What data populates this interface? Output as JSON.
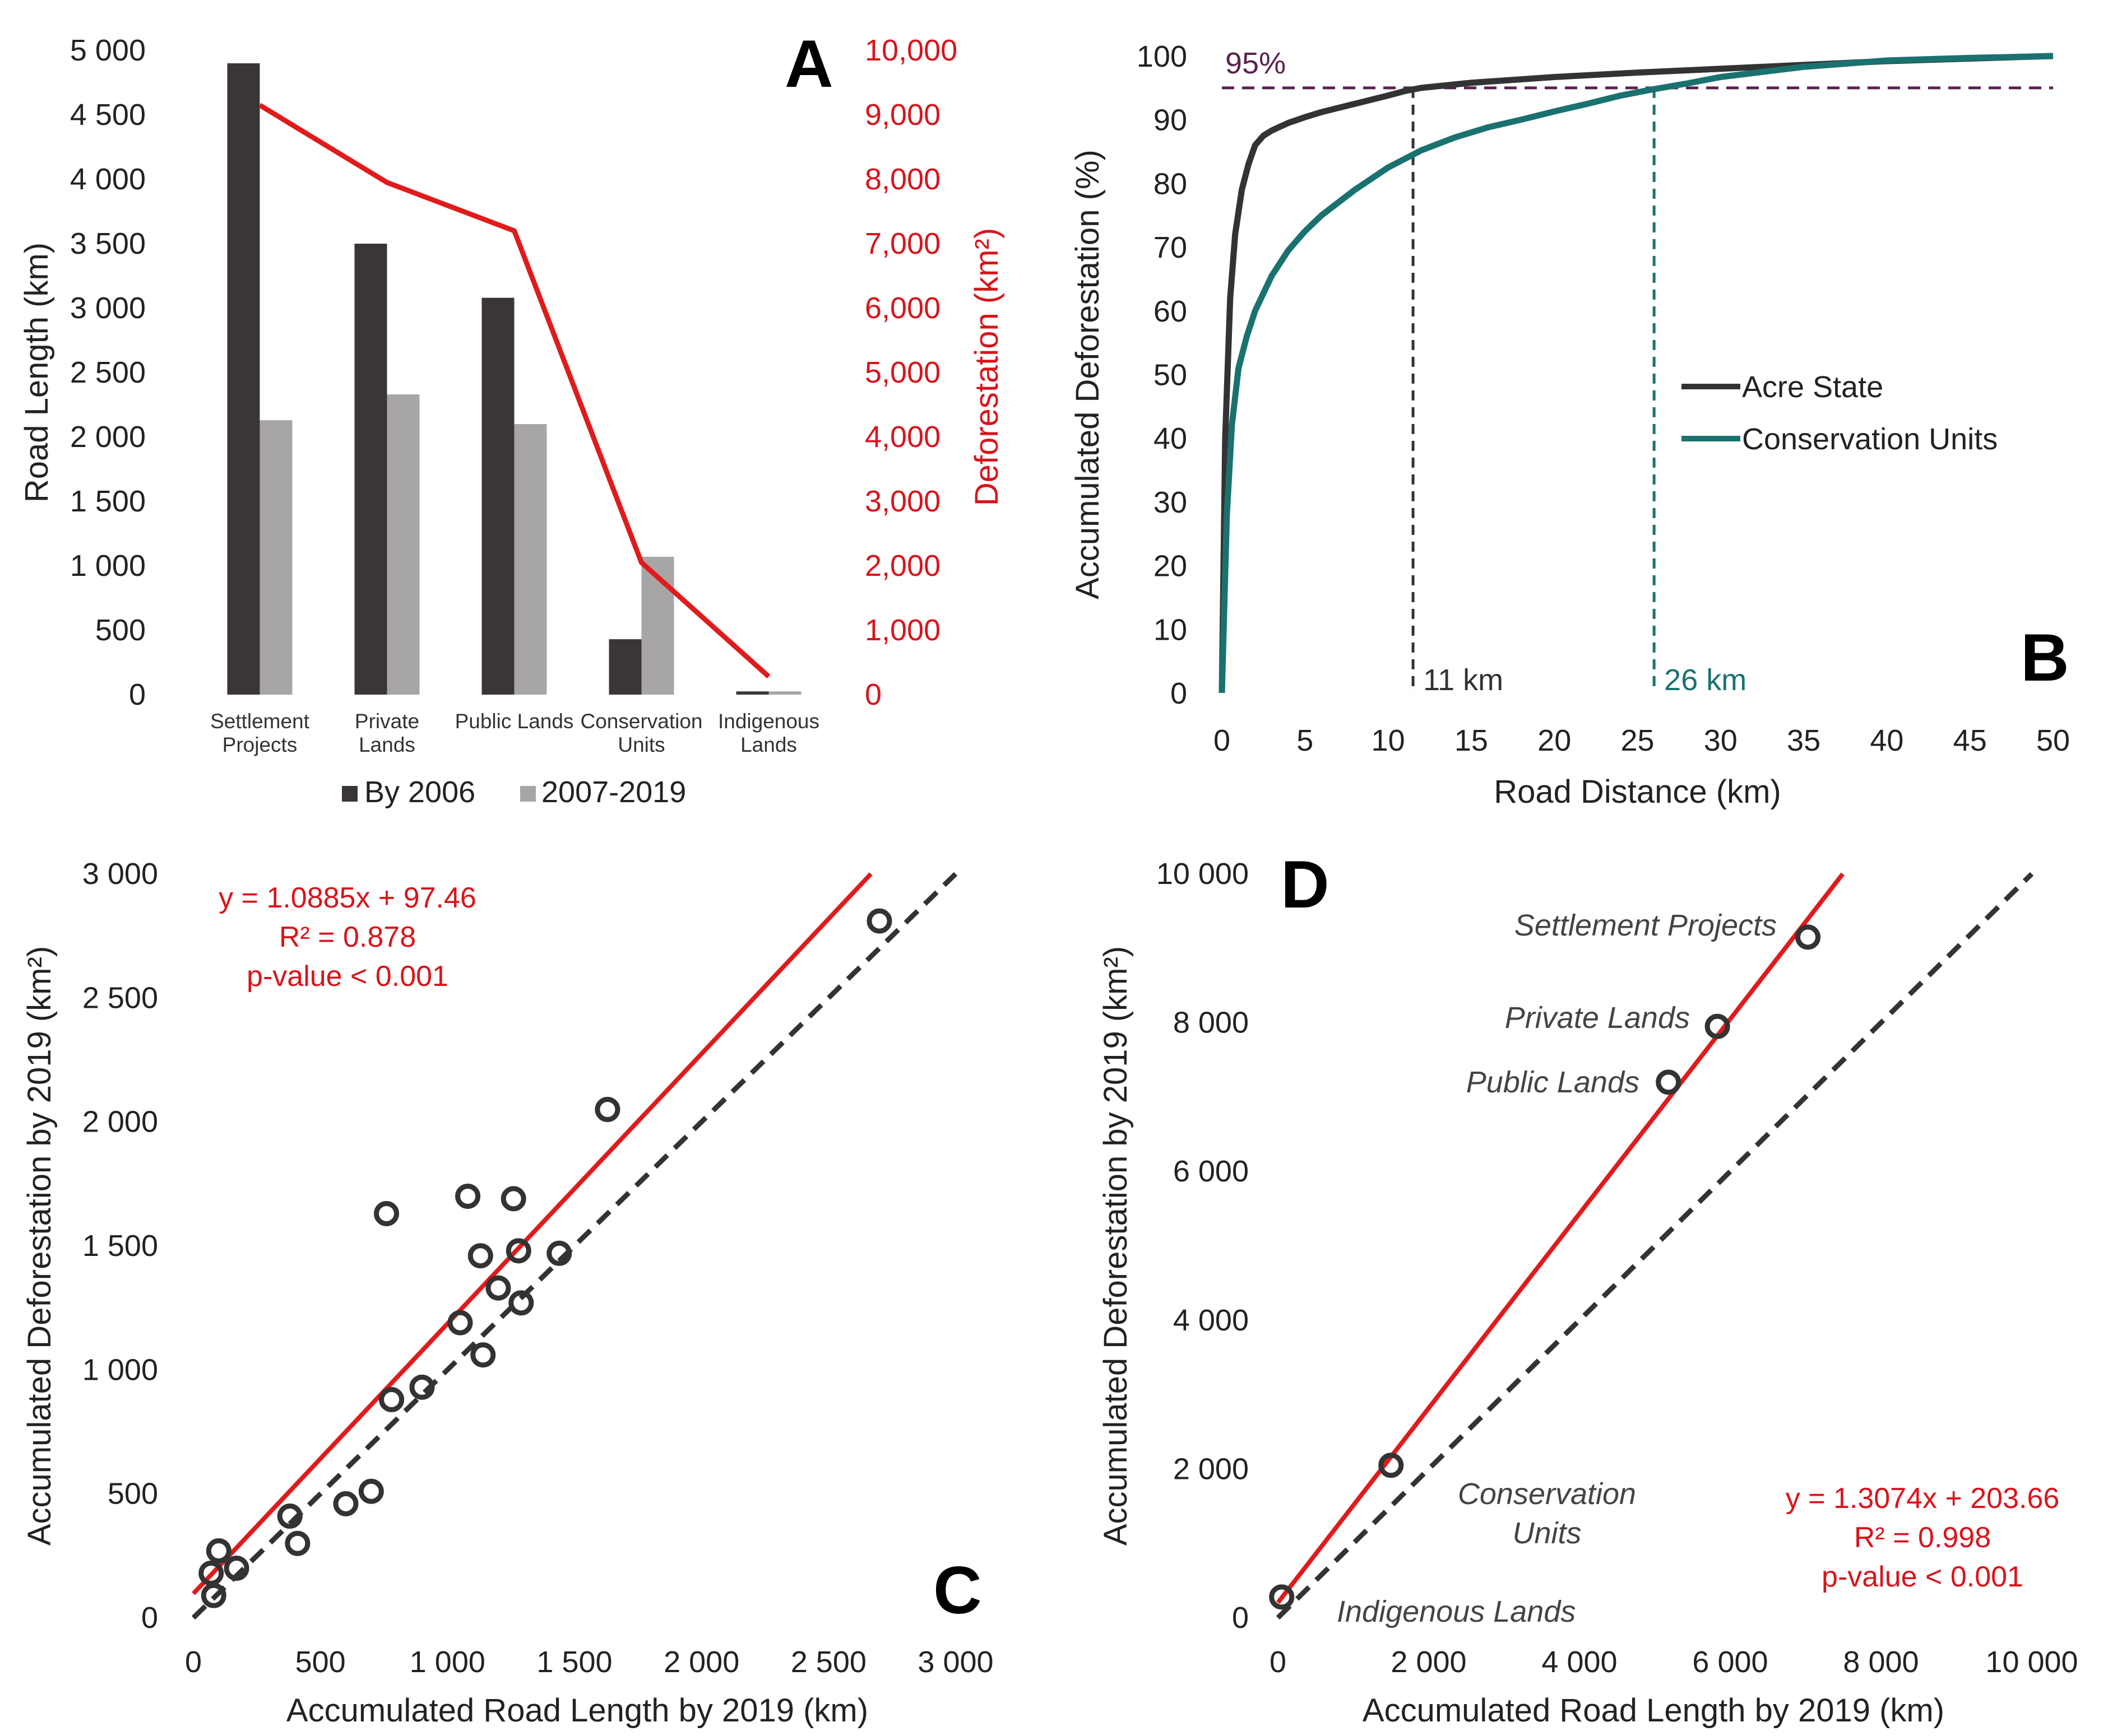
{
  "chart_data": [
    {
      "panel": "A",
      "type": "bar",
      "categories": [
        [
          "Settlement",
          "Projects"
        ],
        [
          "Private",
          "Lands"
        ],
        [
          "Public Lands"
        ],
        [
          "Conservation",
          "Units"
        ],
        [
          "Indigenous",
          "Lands"
        ]
      ],
      "series": [
        {
          "name": "By 2006",
          "axis": "left",
          "color": "#3a3637",
          "values": [
            4900,
            3500,
            3080,
            430,
            25
          ]
        },
        {
          "name": "2007-2019",
          "axis": "left",
          "color": "#a8a5a6",
          "values": [
            2130,
            2330,
            2100,
            1070,
            25
          ]
        },
        {
          "name": "Deforestation",
          "axis": "right",
          "type": "line",
          "color": "#e01b1b",
          "values": [
            9150,
            7950,
            7200,
            2050,
            280
          ]
        }
      ],
      "ylabel": "Road Length (km)",
      "ylabel2": "Deforestation (km²)",
      "ylim": [
        0,
        5000
      ],
      "ylim2": [
        0,
        10000
      ],
      "yticks": [
        "0",
        "500",
        "1 000",
        "1 500",
        "2 000",
        "2 500",
        "3 000",
        "3 500",
        "4 000",
        "4 500",
        "5 000"
      ],
      "yticks2": [
        "0",
        "1,000",
        "2,000",
        "3,000",
        "4,000",
        "5,000",
        "6,000",
        "7,000",
        "8,000",
        "9,000",
        "10,000"
      ],
      "legend": [
        "By 2006",
        "2007-2019"
      ],
      "legend_position": "bottom"
    },
    {
      "panel": "B",
      "type": "line",
      "series": [
        {
          "name": "Acre State",
          "color": "#333333",
          "x": [
            0,
            0.2,
            0.5,
            0.8,
            1.2,
            1.6,
            2.0,
            2.5,
            3,
            4,
            5,
            6,
            8,
            10,
            11,
            12,
            15,
            20,
            25,
            30,
            35,
            40,
            45,
            50
          ],
          "y": [
            0,
            40,
            62,
            72,
            79,
            83,
            86,
            87.5,
            88.3,
            89.5,
            90.4,
            91.2,
            92.5,
            93.8,
            94.5,
            95,
            95.8,
            96.7,
            97.4,
            98,
            98.6,
            99.2,
            99.6,
            100
          ]
        },
        {
          "name": "Conservation Units",
          "color": "#1a7270",
          "x": [
            0,
            0.3,
            0.6,
            1,
            1.5,
            2,
            3,
            4,
            5,
            6,
            8,
            10,
            12,
            14,
            16,
            18,
            20,
            22,
            24,
            26,
            28,
            30,
            35,
            40,
            45,
            50
          ],
          "y": [
            0,
            28,
            42,
            51,
            56,
            60,
            65.5,
            69.5,
            72.5,
            75,
            79,
            82.5,
            85.2,
            87.2,
            88.8,
            90,
            91.3,
            92.5,
            93.8,
            94.8,
            95.7,
            96.7,
            98.3,
            99.3,
            99.7,
            100
          ]
        }
      ],
      "threshold_label": "95%",
      "threshold": 95,
      "markers": [
        {
          "x": 11.5,
          "label": "11 km",
          "color": "#333333"
        },
        {
          "x": 26,
          "label": "26 km",
          "color": "#1a7270"
        }
      ],
      "xlabel": "Road Distance (km)",
      "ylabel": "Accumulated Deforestation (%)",
      "xlim": [
        0,
        50
      ],
      "ylim": [
        0,
        100
      ],
      "xticks": [
        "0",
        "5",
        "10",
        "15",
        "20",
        "25",
        "30",
        "35",
        "40",
        "45",
        "50"
      ],
      "yticks": [
        "0",
        "10",
        "20",
        "30",
        "40",
        "50",
        "60",
        "70",
        "80",
        "90",
        "100"
      ],
      "legend": [
        "Acre State",
        "Conservation Units"
      ],
      "legend_position": "center-right"
    },
    {
      "panel": "C",
      "type": "scatter",
      "x": [
        80,
        100,
        70,
        170,
        410,
        380,
        600,
        700,
        780,
        900,
        1050,
        1140,
        1130,
        1200,
        1280,
        1290,
        1440,
        760,
        1080,
        1260,
        1630,
        2700
      ],
      "y": [
        90,
        270,
        180,
        200,
        300,
        410,
        460,
        510,
        880,
        930,
        1190,
        1060,
        1460,
        1330,
        1480,
        1270,
        1470,
        1630,
        1700,
        1690,
        2050,
        2810
      ],
      "fit": {
        "slope": 1.0885,
        "intercept": 97.46,
        "color": "#e01b1b"
      },
      "equation": "y = 1.0885x + 97.46",
      "r2": "R² = 0.878",
      "pvalue": "p-value < 0.001",
      "xlabel": "Accumulated Road Length by 2019 (km)",
      "ylabel": "Accumulated Deforestation by 2019 (km²)",
      "xlim": [
        0,
        3000
      ],
      "ylim": [
        0,
        3000
      ],
      "xticks": [
        "0",
        "500",
        "1 000",
        "1 500",
        "2 000",
        "2 500",
        "3 000"
      ],
      "yticks": [
        "0",
        "500",
        "1 000",
        "1 500",
        "2 000",
        "2 500",
        "3 000"
      ]
    },
    {
      "panel": "D",
      "type": "scatter",
      "points": [
        {
          "label": "Settlement Projects",
          "x": 7030,
          "y": 9150
        },
        {
          "label": "Private Lands",
          "x": 5830,
          "y": 7950
        },
        {
          "label": "Public Lands",
          "x": 5180,
          "y": 7200
        },
        {
          "label": "Conservation Units",
          "x": 1500,
          "y": 2050
        },
        {
          "label": "Indigenous Lands",
          "x": 50,
          "y": 280
        }
      ],
      "fit": {
        "slope": 1.3074,
        "intercept": 203.66,
        "color": "#e01b1b"
      },
      "equation": "y = 1.3074x + 203.66",
      "r2": "R² = 0.998",
      "pvalue": "p-value < 0.001",
      "xlabel": "Accumulated Road Length by 2019 (km)",
      "ylabel": "Accumulated Deforestation by 2019 (km²)",
      "xlim": [
        0,
        10000
      ],
      "ylim": [
        0,
        10000
      ],
      "xticks": [
        "0",
        "2 000",
        "4 000",
        "6 000",
        "8 000",
        "10 000"
      ],
      "yticks": [
        "0",
        "2 000",
        "4 000",
        "6 000",
        "8 000",
        "10 000"
      ]
    }
  ],
  "panels": {
    "A": "A",
    "B": "B",
    "C": "C",
    "D": "D"
  },
  "labels": {
    "d_conservation_1": "Conservation",
    "d_conservation_2": "Units"
  }
}
